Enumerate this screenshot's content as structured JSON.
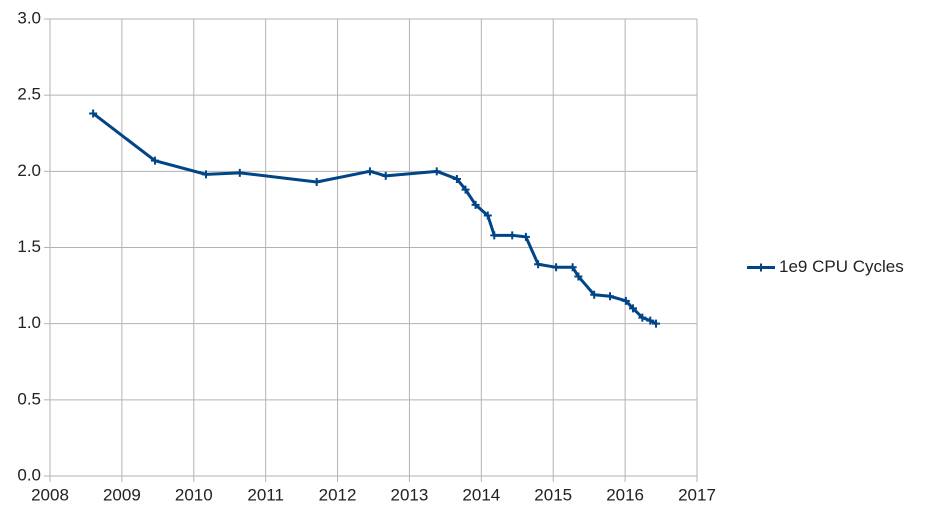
{
  "chart_data": {
    "type": "line",
    "x": [
      2008.6,
      2009.46,
      2010.17,
      2010.64,
      2011.71,
      2012.45,
      2012.67,
      2013.38,
      2013.66,
      2013.78,
      2013.92,
      2014.09,
      2014.18,
      2014.43,
      2014.62,
      2014.79,
      2015.04,
      2015.27,
      2015.35,
      2015.57,
      2015.79,
      2016.01,
      2016.11,
      2016.24,
      2016.35,
      2016.43
    ],
    "series": [
      {
        "name": "1e9 CPU Cycles",
        "color": "#004586",
        "values": [
          2.38,
          2.07,
          1.98,
          1.99,
          1.93,
          2.0,
          1.97,
          2.0,
          1.95,
          1.88,
          1.78,
          1.71,
          1.58,
          1.58,
          1.57,
          1.39,
          1.37,
          1.37,
          1.31,
          1.19,
          1.18,
          1.15,
          1.1,
          1.04,
          1.02,
          1.0
        ]
      }
    ],
    "xlim": [
      2008,
      2017
    ],
    "xticks": [
      2008,
      2009,
      2010,
      2011,
      2012,
      2013,
      2014,
      2015,
      2016,
      2017
    ],
    "ylim": [
      0,
      3
    ],
    "yticks": [
      {
        "value": 0,
        "label": "0.0"
      },
      {
        "value": 0.5,
        "label": "0.5"
      },
      {
        "value": 1,
        "label": "1.0"
      },
      {
        "value": 1.5,
        "label": "1.5"
      },
      {
        "value": 2,
        "label": "2.0"
      },
      {
        "value": 2.5,
        "label": "2.5"
      },
      {
        "value": 3,
        "label": "3.0"
      }
    ],
    "grid": true,
    "legend": "right"
  }
}
